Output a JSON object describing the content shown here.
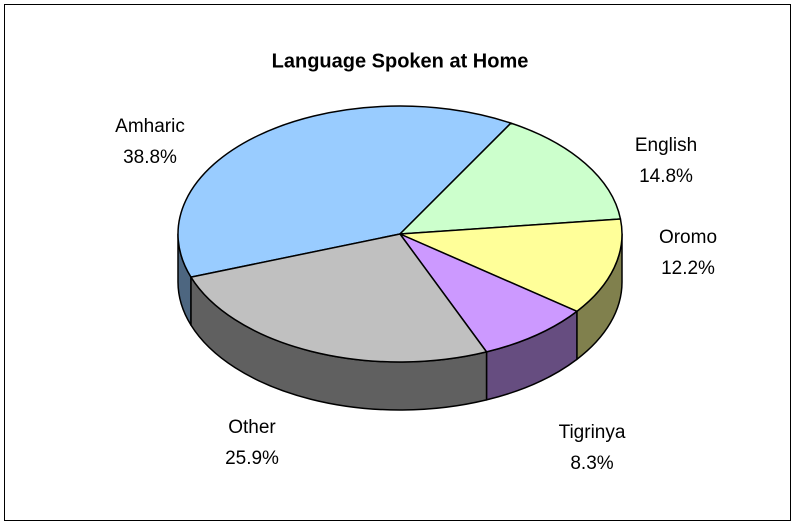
{
  "chart_data": {
    "type": "pie",
    "title": "Language Spoken at Home",
    "categories": [
      "Amharic",
      "English",
      "Oromo",
      "Tigrinya",
      "Other"
    ],
    "values": [
      38.8,
      14.8,
      12.2,
      8.3,
      25.9
    ],
    "value_labels": [
      "38.8%",
      "14.8%",
      "12.2%",
      "8.3%",
      "25.9%"
    ],
    "colors": [
      "#99ccff",
      "#ccffcc",
      "#ffff99",
      "#cc99ff",
      "#c0c0c0"
    ]
  }
}
